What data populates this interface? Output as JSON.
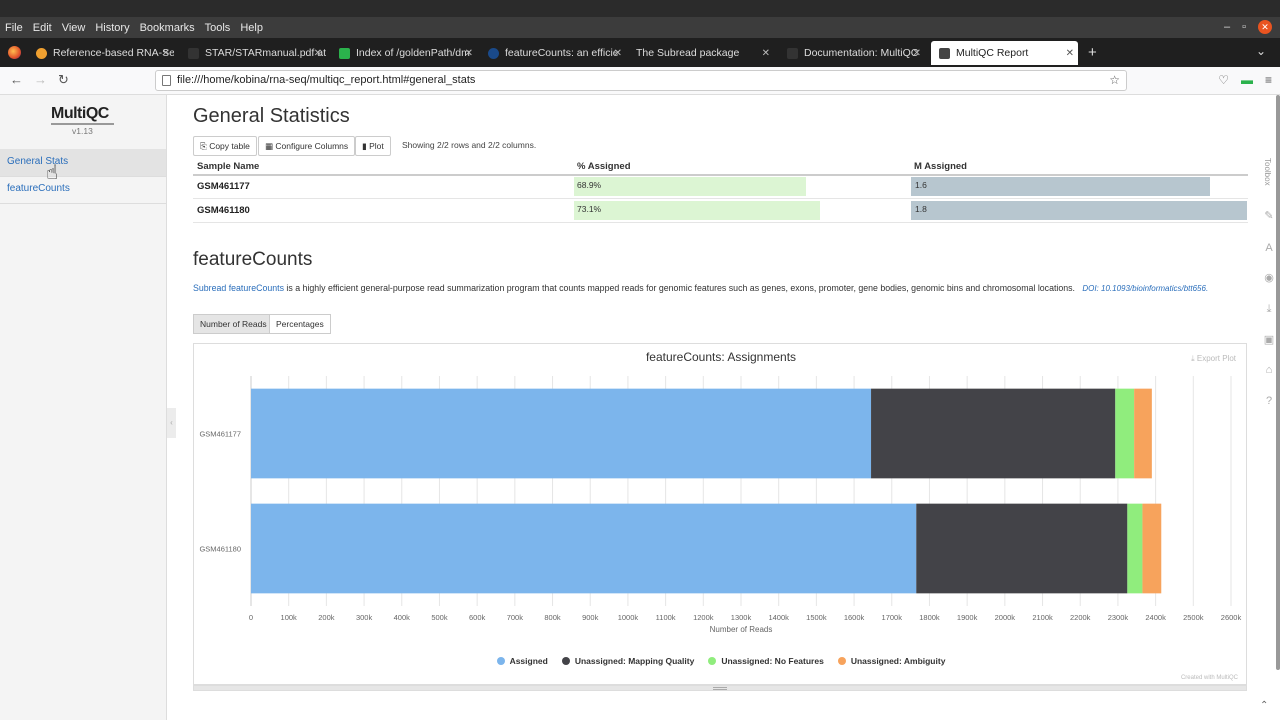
{
  "menubar": {
    "items": [
      {
        "label": "File"
      },
      {
        "label": "Edit"
      },
      {
        "label": "View"
      },
      {
        "label": "History"
      },
      {
        "label": "Bookmarks"
      },
      {
        "label": "Tools"
      },
      {
        "label": "Help"
      }
    ]
  },
  "tabs": [
    {
      "title": "Reference-based RNA-Se",
      "color": "#f0a030"
    },
    {
      "title": "STAR/STARmanual.pdf at",
      "color": "#333333"
    },
    {
      "title": "Index of /goldenPath/dm",
      "color": "#2bb24c"
    },
    {
      "title": "featureCounts: an efficie",
      "color": "#1a4a8a"
    },
    {
      "title": "The Subread package",
      "color": "#1f1f1f"
    },
    {
      "title": "Documentation: MultiQC",
      "color": "#333333"
    },
    {
      "title": "MultiQC Report",
      "color": "#333333",
      "active": true
    }
  ],
  "url": "file:///home/kobina/rna-seq/multiqc_report.html#general_stats",
  "sidebar": {
    "logo": "MultiQC",
    "version": "v1.13",
    "items": [
      {
        "label": "General Stats"
      },
      {
        "label": "featureCounts"
      }
    ]
  },
  "general_stats": {
    "title": "General Statistics",
    "buttons": {
      "copy": "Copy table",
      "configure": "Configure Columns",
      "plot": "Plot"
    },
    "showing": "Showing 2/2 rows and 2/2 columns.",
    "columns": [
      "Sample Name",
      "% Assigned",
      "M Assigned"
    ],
    "rows": [
      {
        "sample": "GSM461177",
        "pct_label": "68.9%",
        "pct": 68.9,
        "m_label": "1.6",
        "m": 1.6
      },
      {
        "sample": "GSM461180",
        "pct_label": "73.1%",
        "pct": 73.1,
        "m_label": "1.8",
        "m": 1.8
      }
    ]
  },
  "featurecounts": {
    "title": "featureCounts",
    "link": "Subread featureCounts",
    "description": " is a highly efficient general-purpose read summarization program that counts mapped reads for genomic features such as genes, exons, promoter, gene bodies, genomic bins and chromosomal locations.",
    "doi": "DOI: 10.1093/bioinformatics/btt656.",
    "toggles": [
      "Number of Reads",
      "Percentages"
    ],
    "export_label": "Export Plot",
    "created_label": "Created with MultiQC"
  },
  "toolbox": {
    "label": "Toolbox"
  },
  "chart_data": {
    "type": "bar",
    "orientation": "horizontal",
    "stacked": true,
    "title": "featureCounts: Assignments",
    "xlabel": "Number of Reads",
    "ylabel": "",
    "xlim": [
      0,
      2600000
    ],
    "x_ticks": [
      "0",
      "100k",
      "200k",
      "300k",
      "400k",
      "500k",
      "600k",
      "700k",
      "800k",
      "900k",
      "1000k",
      "1100k",
      "1200k",
      "1300k",
      "1400k",
      "1500k",
      "1600k",
      "1700k",
      "1800k",
      "1900k",
      "2000k",
      "2100k",
      "2200k",
      "2300k",
      "2400k",
      "2500k",
      "2600k"
    ],
    "categories": [
      "GSM461177",
      "GSM461180"
    ],
    "series": [
      {
        "name": "Assigned",
        "color": "#7cb5ec",
        "values": [
          1645000,
          1765000
        ]
      },
      {
        "name": "Unassigned: Mapping Quality",
        "color": "#434348",
        "values": [
          648000,
          560000
        ]
      },
      {
        "name": "Unassigned: No Features",
        "color": "#90ed7d",
        "values": [
          50000,
          40000
        ]
      },
      {
        "name": "Unassigned: Ambiguity",
        "color": "#f7a35c",
        "values": [
          47000,
          50000
        ]
      }
    ],
    "legend_position": "bottom",
    "grid": true
  }
}
